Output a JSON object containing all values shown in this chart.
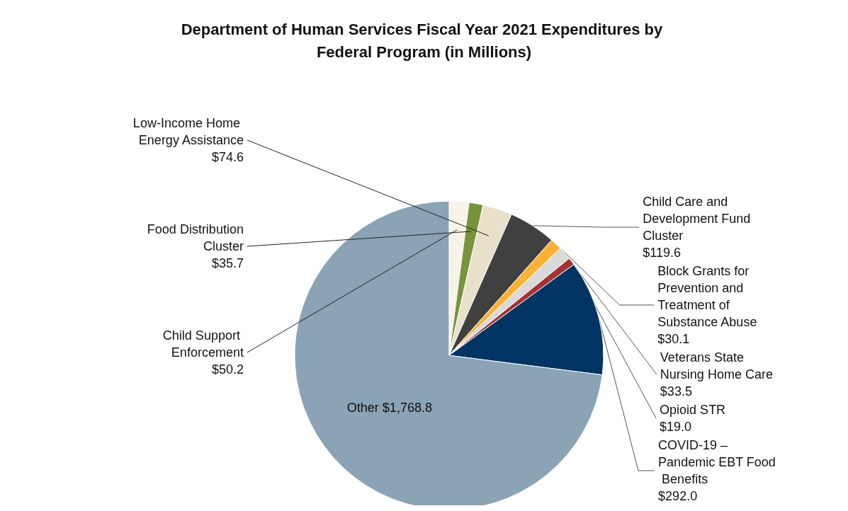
{
  "chart_data": {
    "type": "pie",
    "title": "Department of Human Services Fiscal Year 2021 Expenditures by Federal Program (in Millions)",
    "categories": [
      "Child Support Enforcement",
      "Food Distribution Cluster",
      "Low-Income Home Energy Assistance",
      "Child Care and Development Fund Cluster",
      "Block Grants for Prevention and Treatment of Substance Abuse",
      "Veterans State Nursing Home Care",
      "Opioid STR",
      "COVID-19 – Pandemic EBT Food Benefits",
      "Other"
    ],
    "values": [
      50.2,
      35.7,
      74.6,
      119.6,
      30.1,
      33.5,
      19.0,
      292.0,
      1768.8
    ],
    "value_labels": [
      "$50.2",
      "$35.7",
      "$74.6",
      "$119.6",
      "$30.1",
      "$33.5",
      "$19.0",
      "$292.0",
      "$1,768.8"
    ],
    "colors": [
      "#f7f3e8",
      "#77933c",
      "#e8e0c8",
      "#404040",
      "#f9b233",
      "#d9d9d9",
      "#a33233",
      "#003462",
      "#8aa3b5"
    ],
    "legend": false
  }
}
